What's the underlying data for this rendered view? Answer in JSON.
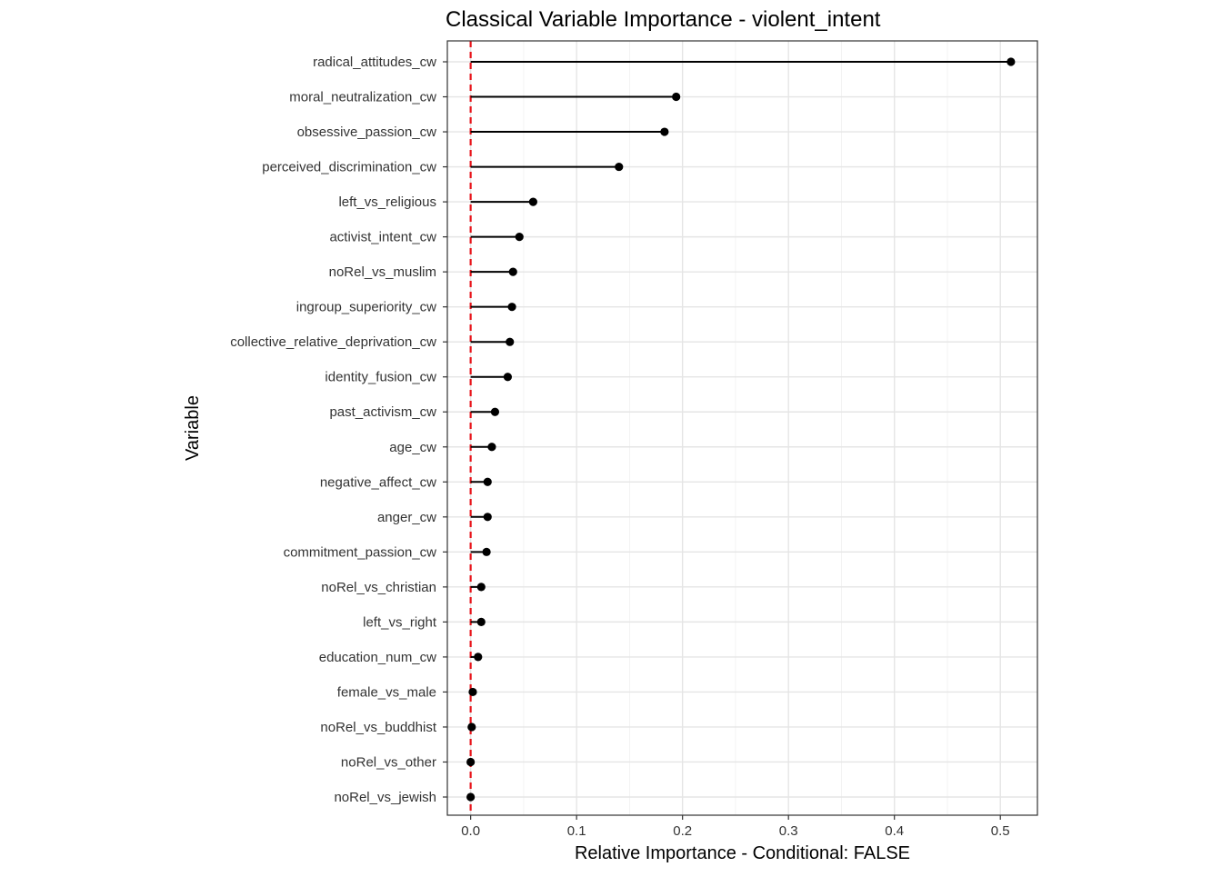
{
  "chart_data": {
    "type": "lollipop",
    "title": "Classical Variable Importance - violent_intent",
    "xlabel": "Relative Importance - Conditional: FALSE",
    "ylabel": "Variable",
    "xlim": [
      -0.022,
      0.535
    ],
    "xticks": [
      0.0,
      0.1,
      0.2,
      0.3,
      0.4,
      0.5
    ],
    "xtick_labels": [
      "0.0",
      "0.1",
      "0.2",
      "0.3",
      "0.4",
      "0.5"
    ],
    "reference_line": {
      "x": 0,
      "color": "#e8141a",
      "style": "dashed"
    },
    "grid": true,
    "categories": [
      "radical_attitudes_cw",
      "moral_neutralization_cw",
      "obsessive_passion_cw",
      "perceived_discrimination_cw",
      "left_vs_religious",
      "activist_intent_cw",
      "noRel_vs_muslim",
      "ingroup_superiority_cw",
      "collective_relative_deprivation_cw",
      "identity_fusion_cw",
      "past_activism_cw",
      "age_cw",
      "negative_affect_cw",
      "anger_cw",
      "commitment_passion_cw",
      "noRel_vs_christian",
      "left_vs_right",
      "education_num_cw",
      "female_vs_male",
      "noRel_vs_buddhist",
      "noRel_vs_other",
      "noRel_vs_jewish"
    ],
    "values": [
      0.51,
      0.194,
      0.183,
      0.14,
      0.059,
      0.046,
      0.04,
      0.039,
      0.037,
      0.035,
      0.023,
      0.02,
      0.016,
      0.016,
      0.015,
      0.01,
      0.01,
      0.007,
      0.002,
      0.001,
      0.0,
      0.0
    ]
  }
}
